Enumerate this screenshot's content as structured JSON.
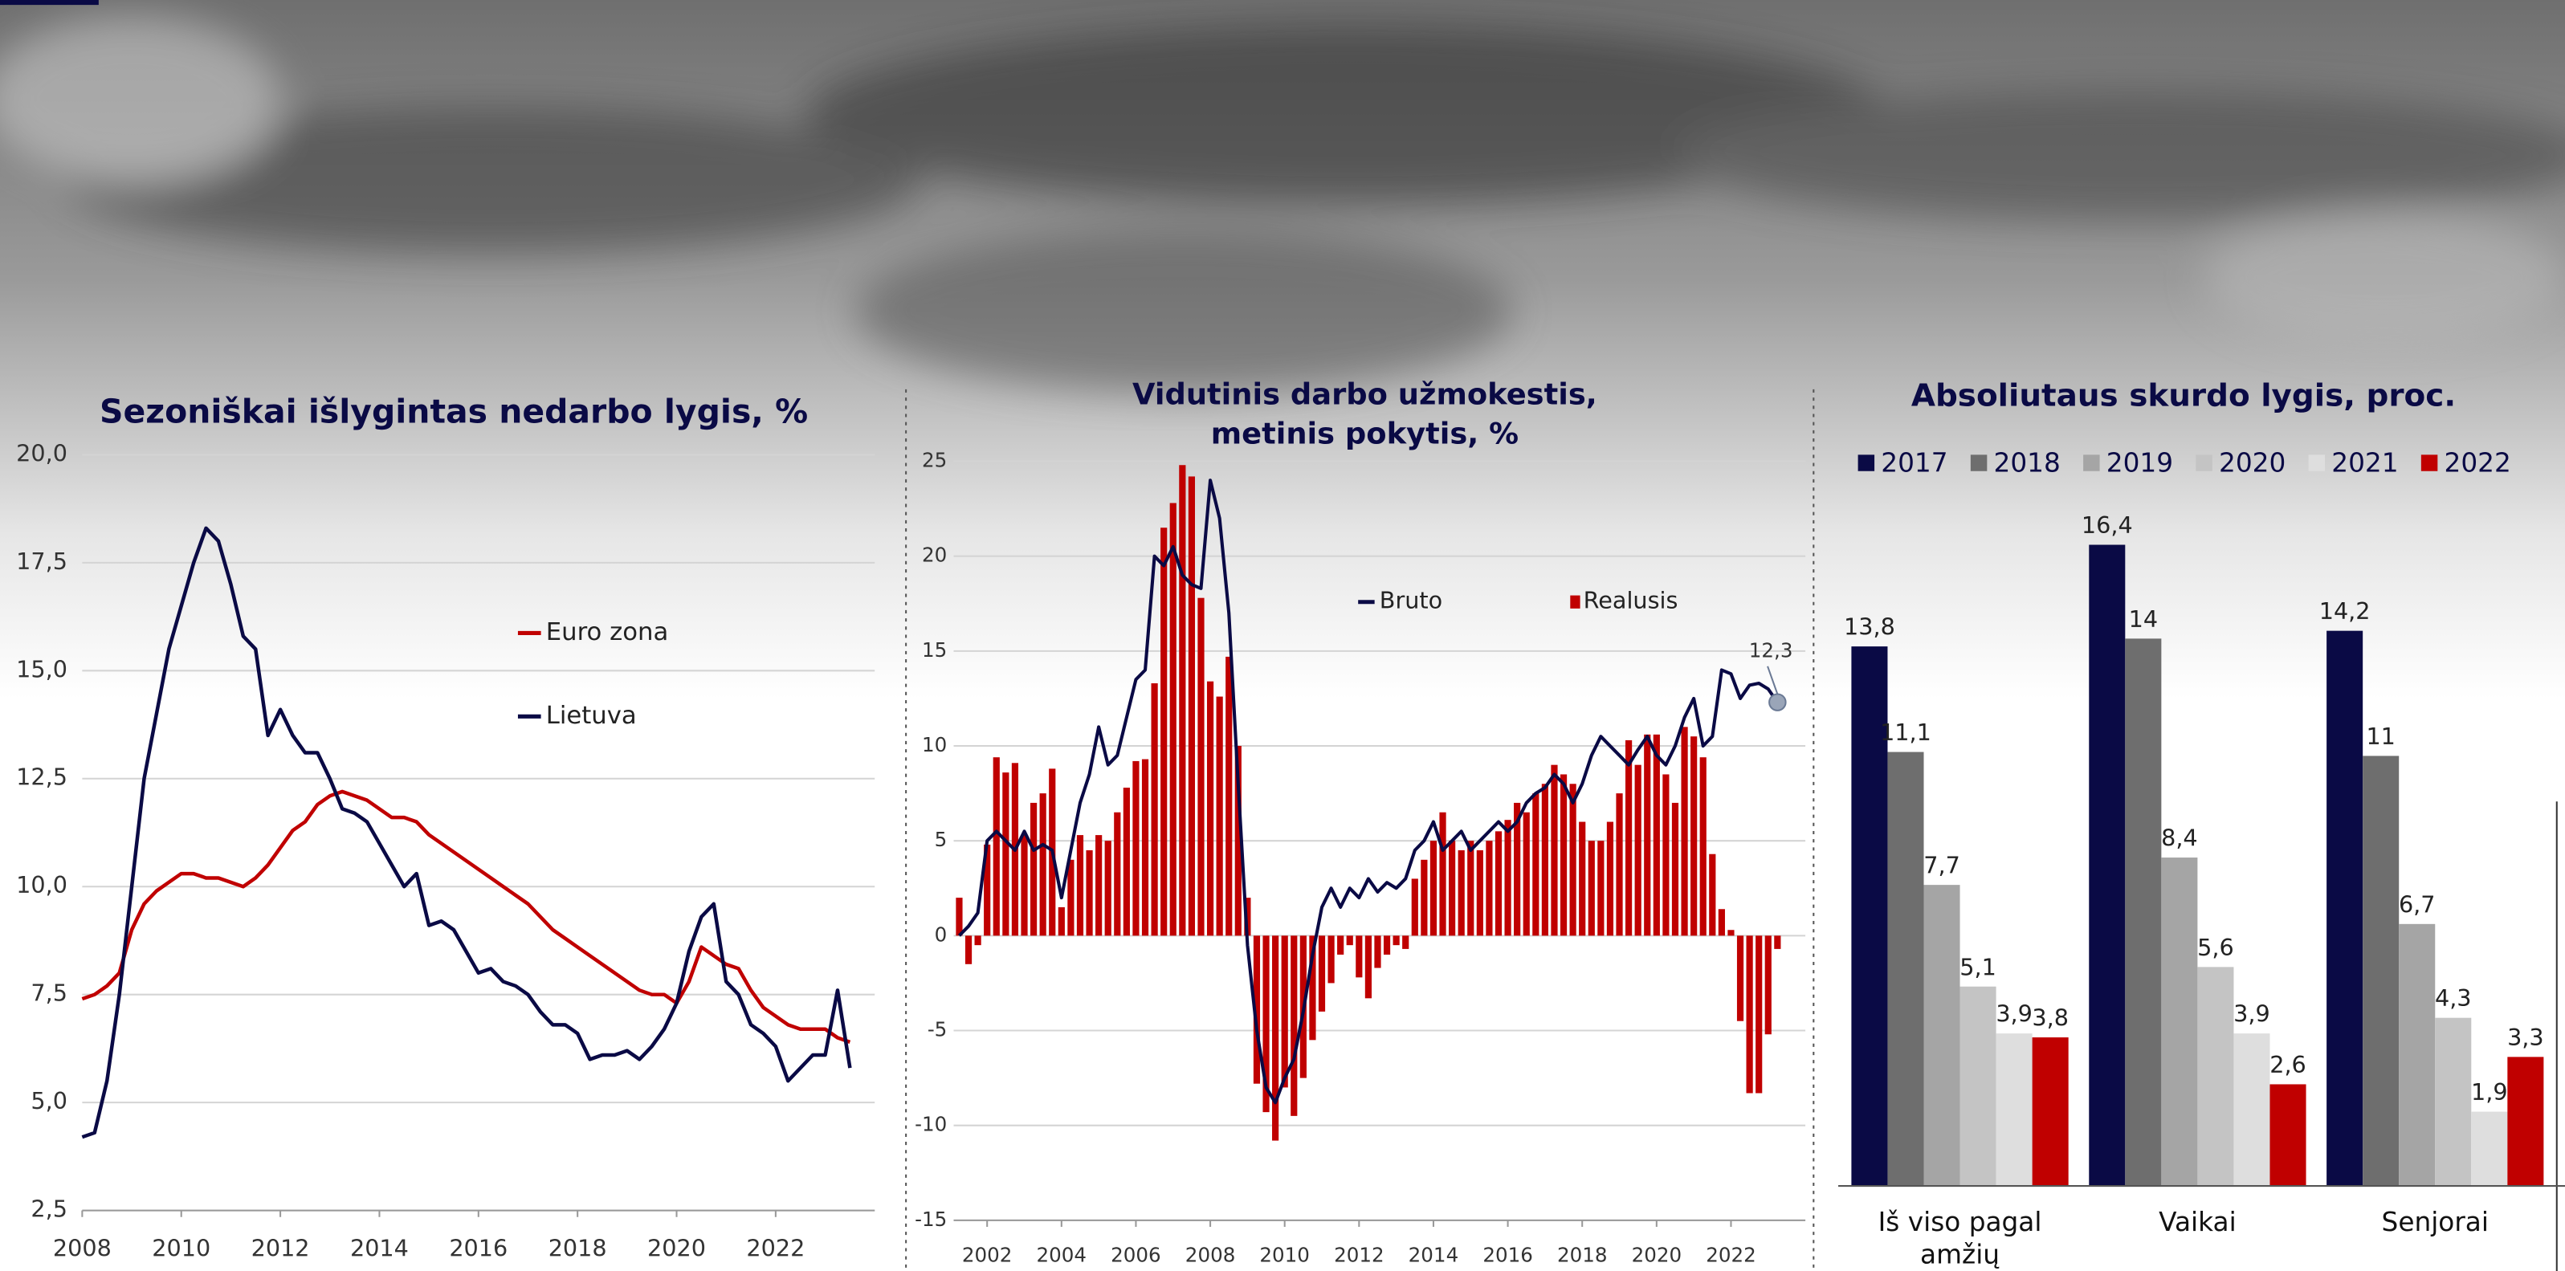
{
  "chart_data": [
    {
      "type": "line",
      "title": "Sezoniškai išlygintas nedarbo lygis, %",
      "x": [
        2008,
        2008.25,
        2008.5,
        2008.75,
        2009,
        2009.25,
        2009.5,
        2009.75,
        2010,
        2010.25,
        2010.5,
        2010.75,
        2011,
        2011.25,
        2011.5,
        2011.75,
        2012,
        2012.25,
        2012.5,
        2012.75,
        2013,
        2013.25,
        2013.5,
        2013.75,
        2014,
        2014.25,
        2014.5,
        2014.75,
        2015,
        2015.25,
        2015.5,
        2015.75,
        2016,
        2016.25,
        2016.5,
        2016.75,
        2017,
        2017.25,
        2017.5,
        2017.75,
        2018,
        2018.25,
        2018.5,
        2018.75,
        2019,
        2019.25,
        2019.5,
        2019.75,
        2020,
        2020.25,
        2020.5,
        2020.75,
        2021,
        2021.25,
        2021.5,
        2021.75,
        2022,
        2022.25,
        2022.5,
        2022.75,
        2023,
        2023.25,
        2023.5
      ],
      "series": [
        {
          "name": "Euro zona",
          "color": "#c00000",
          "values": [
            7.4,
            7.5,
            7.7,
            8.0,
            9.0,
            9.6,
            9.9,
            10.1,
            10.3,
            10.3,
            10.2,
            10.2,
            10.1,
            10.0,
            10.2,
            10.5,
            10.9,
            11.3,
            11.5,
            11.9,
            12.1,
            12.2,
            12.1,
            12.0,
            11.8,
            11.6,
            11.6,
            11.5,
            11.2,
            11.0,
            10.8,
            10.6,
            10.4,
            10.2,
            10.0,
            9.8,
            9.6,
            9.3,
            9.0,
            8.8,
            8.6,
            8.4,
            8.2,
            8.0,
            7.8,
            7.6,
            7.5,
            7.5,
            7.3,
            7.8,
            8.6,
            8.4,
            8.2,
            8.1,
            7.6,
            7.2,
            7.0,
            6.8,
            6.7,
            6.7,
            6.7,
            6.5,
            6.4
          ]
        },
        {
          "name": "Lietuva",
          "color": "#0a0a45",
          "values": [
            4.2,
            4.3,
            5.5,
            7.5,
            10.0,
            12.5,
            14.0,
            15.5,
            16.5,
            17.5,
            18.3,
            18.0,
            17.0,
            15.8,
            15.5,
            13.5,
            14.1,
            13.5,
            13.1,
            13.1,
            12.5,
            11.8,
            11.7,
            11.5,
            11.0,
            10.5,
            10.0,
            10.3,
            9.1,
            9.2,
            9.0,
            8.5,
            8.0,
            8.1,
            7.8,
            7.7,
            7.5,
            7.1,
            6.8,
            6.8,
            6.6,
            6.0,
            6.1,
            6.1,
            6.2,
            6.0,
            6.3,
            6.7,
            7.3,
            8.5,
            9.3,
            9.6,
            7.8,
            7.5,
            6.8,
            6.6,
            6.3,
            5.5,
            5.8,
            6.1,
            6.1,
            7.6,
            5.8
          ]
        }
      ],
      "xlim": [
        2008,
        2024
      ],
      "xticks": [
        2008,
        2010,
        2012,
        2014,
        2016,
        2018,
        2020,
        2022
      ],
      "ylim": [
        2.5,
        20
      ],
      "yticks": [
        {
          "value": 2.5,
          "label": "2,5"
        },
        {
          "value": 5,
          "label": "5,0"
        },
        {
          "value": 7.5,
          "label": "7,5"
        },
        {
          "value": 10,
          "label": "10,0"
        },
        {
          "value": 12.5,
          "label": "12,5"
        },
        {
          "value": 15,
          "label": "15,0"
        },
        {
          "value": 17.5,
          "label": "17,5"
        },
        {
          "value": 20,
          "label": "20,0"
        }
      ],
      "grid": true
    },
    {
      "type": "combo",
      "title": [
        "Vidutinis darbo užmokestis,",
        "metinis pokytis, %"
      ],
      "x": [
        2001.25,
        2001.5,
        2001.75,
        2002,
        2002.25,
        2002.5,
        2002.75,
        2003,
        2003.25,
        2003.5,
        2003.75,
        2004,
        2004.25,
        2004.5,
        2004.75,
        2005,
        2005.25,
        2005.5,
        2005.75,
        2006,
        2006.25,
        2006.5,
        2006.75,
        2007,
        2007.25,
        2007.5,
        2007.75,
        2008,
        2008.25,
        2008.5,
        2008.75,
        2009,
        2009.25,
        2009.5,
        2009.75,
        2010,
        2010.25,
        2010.5,
        2010.75,
        2011,
        2011.25,
        2011.5,
        2011.75,
        2012,
        2012.25,
        2012.5,
        2012.75,
        2013,
        2013.25,
        2013.5,
        2013.75,
        2014,
        2014.25,
        2014.5,
        2014.75,
        2015,
        2015.25,
        2015.5,
        2015.75,
        2016,
        2016.25,
        2016.5,
        2016.75,
        2017,
        2017.25,
        2017.5,
        2017.75,
        2018,
        2018.25,
        2018.5,
        2018.75,
        2019,
        2019.25,
        2019.5,
        2019.75,
        2020,
        2020.25,
        2020.5,
        2020.75,
        2021,
        2021.25,
        2021.5,
        2021.75,
        2022,
        2022.25,
        2022.5,
        2022.75,
        2023,
        2023.25
      ],
      "series": [
        {
          "name": "Bruto",
          "type": "line",
          "color": "#0a0a45",
          "values": [
            0,
            0.5,
            1.2,
            5.0,
            5.5,
            5.0,
            4.5,
            5.5,
            4.5,
            4.8,
            4.5,
            2.0,
            4.5,
            7.0,
            8.5,
            11.0,
            9.0,
            9.5,
            11.5,
            13.5,
            14.0,
            20.0,
            19.5,
            20.5,
            19.0,
            18.5,
            18.3,
            24.0,
            22.0,
            17.0,
            8.0,
            -0.5,
            -5.0,
            -8.0,
            -8.8,
            -7.5,
            -6.5,
            -4.0,
            -1.0,
            1.5,
            2.5,
            1.5,
            2.5,
            2.0,
            3.0,
            2.3,
            2.8,
            2.5,
            3.0,
            4.5,
            5.0,
            6.0,
            4.5,
            5.0,
            5.5,
            4.5,
            5.0,
            5.5,
            6.0,
            5.5,
            6.0,
            7.0,
            7.5,
            7.8,
            8.5,
            8.0,
            7.0,
            8.0,
            9.5,
            10.5,
            10.0,
            9.5,
            9.0,
            9.8,
            10.5,
            9.5,
            9.0,
            10.0,
            11.5,
            12.5,
            10.0,
            10.5,
            14.0,
            13.8,
            12.5,
            13.2,
            13.3,
            13.0,
            12.3
          ]
        },
        {
          "name": "Realusis",
          "type": "bar",
          "color": "#c00000",
          "values": [
            2,
            -1.5,
            -0.5,
            4.8,
            9.4,
            8.6,
            9.1,
            5.3,
            7.0,
            7.5,
            8.8,
            1.5,
            4.0,
            5.3,
            4.5,
            5.3,
            5.0,
            6.5,
            7.8,
            9.2,
            9.3,
            13.3,
            21.5,
            22.8,
            24.8,
            24.2,
            17.8,
            13.4,
            12.6,
            14.7,
            10.0,
            2.0,
            -7.8,
            -9.3,
            -10.8,
            -8.0,
            -9.5,
            -7.5,
            -5.5,
            -4.0,
            -2.5,
            -1.0,
            -0.5,
            -2.2,
            -3.3,
            -1.7,
            -1.0,
            -0.5,
            -0.7,
            3.0,
            4.0,
            5.0,
            6.5,
            5.0,
            4.5,
            5.0,
            4.5,
            5.0,
            5.5,
            6.1,
            7.0,
            6.5,
            7.5,
            8.0,
            9.0,
            8.5,
            8.0,
            6.0,
            5.0,
            5.0,
            6.0,
            7.5,
            10.3,
            9.0,
            10.6,
            10.6,
            8.5,
            7.0,
            11.0,
            10.5,
            9.4,
            4.3,
            1.4,
            0.3,
            -4.5,
            -8.3,
            -8.3,
            -5.2,
            -0.7
          ]
        }
      ],
      "annotation": "12,3",
      "xlim": [
        2001.1,
        2024
      ],
      "xticks": [
        2002,
        2004,
        2006,
        2008,
        2010,
        2012,
        2014,
        2016,
        2018,
        2020,
        2022
      ],
      "ylim": [
        -15,
        25
      ],
      "yticks": [
        -15,
        -10,
        -5,
        0,
        5,
        10,
        15,
        20,
        25
      ],
      "grid": true
    },
    {
      "type": "grouped-bar",
      "title": "Absoliutaus skurdo lygis, proc.",
      "categories": [
        "Iš viso pagal amžių",
        "Vaikai",
        "Senjorai"
      ],
      "series": [
        {
          "name": "2017",
          "color": "#0a0a45",
          "values": [
            13.8,
            16.4,
            14.2
          ],
          "value_labels": [
            "13,8",
            "16,4",
            "14,2"
          ]
        },
        {
          "name": "2018",
          "color": "#6e6e6e",
          "values": [
            11.1,
            14,
            11
          ],
          "value_labels": [
            "11,1",
            "14",
            "11"
          ]
        },
        {
          "name": "2019",
          "color": "#a5a5a5",
          "values": [
            7.7,
            8.4,
            6.7
          ],
          "value_labels": [
            "7,7",
            "8,4",
            "6,7"
          ]
        },
        {
          "name": "2020",
          "color": "#c4c4c4",
          "values": [
            5.1,
            5.6,
            4.3
          ],
          "value_labels": [
            "5,1",
            "5,6",
            "4,3"
          ]
        },
        {
          "name": "2021",
          "color": "#dedede",
          "values": [
            3.9,
            3.9,
            1.9
          ],
          "value_labels": [
            "3,9",
            "3,9",
            "1,9"
          ]
        },
        {
          "name": "2022",
          "color": "#c00000",
          "values": [
            3.8,
            2.6,
            3.3
          ],
          "value_labels": [
            "3,8",
            "2,6",
            "3,3"
          ]
        }
      ]
    }
  ]
}
